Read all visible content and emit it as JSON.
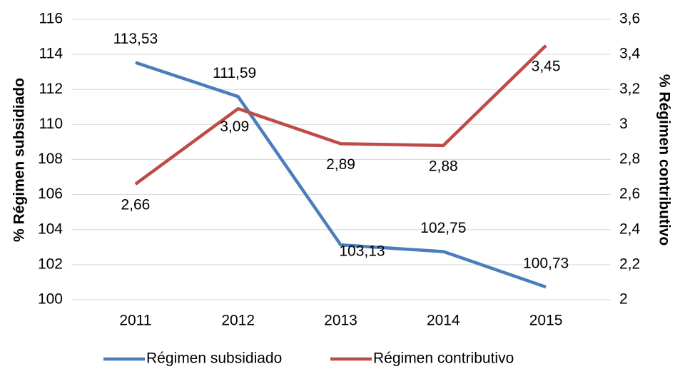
{
  "chart_data": {
    "type": "line",
    "categories": [
      "2011",
      "2012",
      "2013",
      "2014",
      "2015"
    ],
    "y_label": "% Régimen subsidiado",
    "y2_label": "% Régimen contributivo",
    "series": [
      {
        "name": "Régimen subsidiado",
        "color": "#4a7ebb",
        "values": [
          113.53,
          111.59,
          103.13,
          102.75,
          100.73
        ],
        "value_labels": [
          "113,53",
          "111,59",
          "103,13",
          "102,75",
          "100,73"
        ]
      },
      {
        "name": "Régimen contributivo",
        "color": "#be4b48",
        "axis": "y2",
        "values": [
          2.66,
          3.09,
          2.89,
          2.88,
          3.45
        ],
        "value_labels": [
          "2,66",
          "3,09",
          "2,89",
          "2,88",
          "3,45"
        ]
      }
    ],
    "ylim": [
      100,
      116
    ],
    "yticks": [
      100,
      102,
      104,
      106,
      108,
      110,
      112,
      114,
      116
    ],
    "y2lim": [
      2,
      3.6
    ],
    "y2ticks": [
      2,
      {
        "value": 2.2,
        "label": "2,2"
      },
      {
        "value": 2.4,
        "label": "2,4"
      },
      {
        "value": 2.6,
        "label": "2,6"
      },
      {
        "value": 2.8,
        "label": "2,8"
      },
      3,
      {
        "value": 3.2,
        "label": "3,2"
      },
      {
        "value": 3.4,
        "label": "3,4"
      },
      {
        "value": 3.6,
        "label": "3,6"
      }
    ],
    "grid": true,
    "legend": "bottom"
  }
}
